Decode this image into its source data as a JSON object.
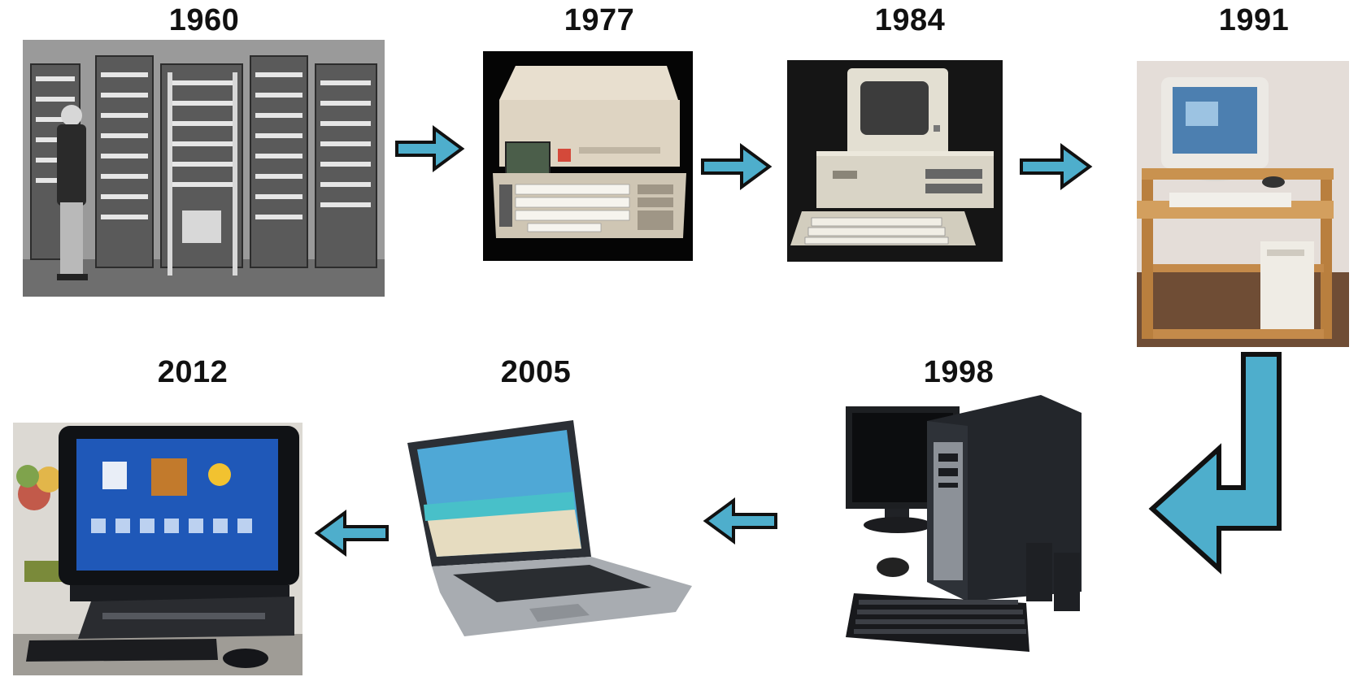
{
  "timeline": {
    "accent_color": "#4eaecc",
    "outline_color": "#111111",
    "stages": [
      {
        "year": "1960",
        "icon": "mainframe-icon"
      },
      {
        "year": "1977",
        "icon": "portable-computer-icon"
      },
      {
        "year": "1984",
        "icon": "personal-computer-icon"
      },
      {
        "year": "1991",
        "icon": "desk-computer-icon"
      },
      {
        "year": "1998",
        "icon": "tower-desktop-icon"
      },
      {
        "year": "2005",
        "icon": "laptop-icon"
      },
      {
        "year": "2012",
        "icon": "all-in-one-computer-icon"
      }
    ]
  }
}
